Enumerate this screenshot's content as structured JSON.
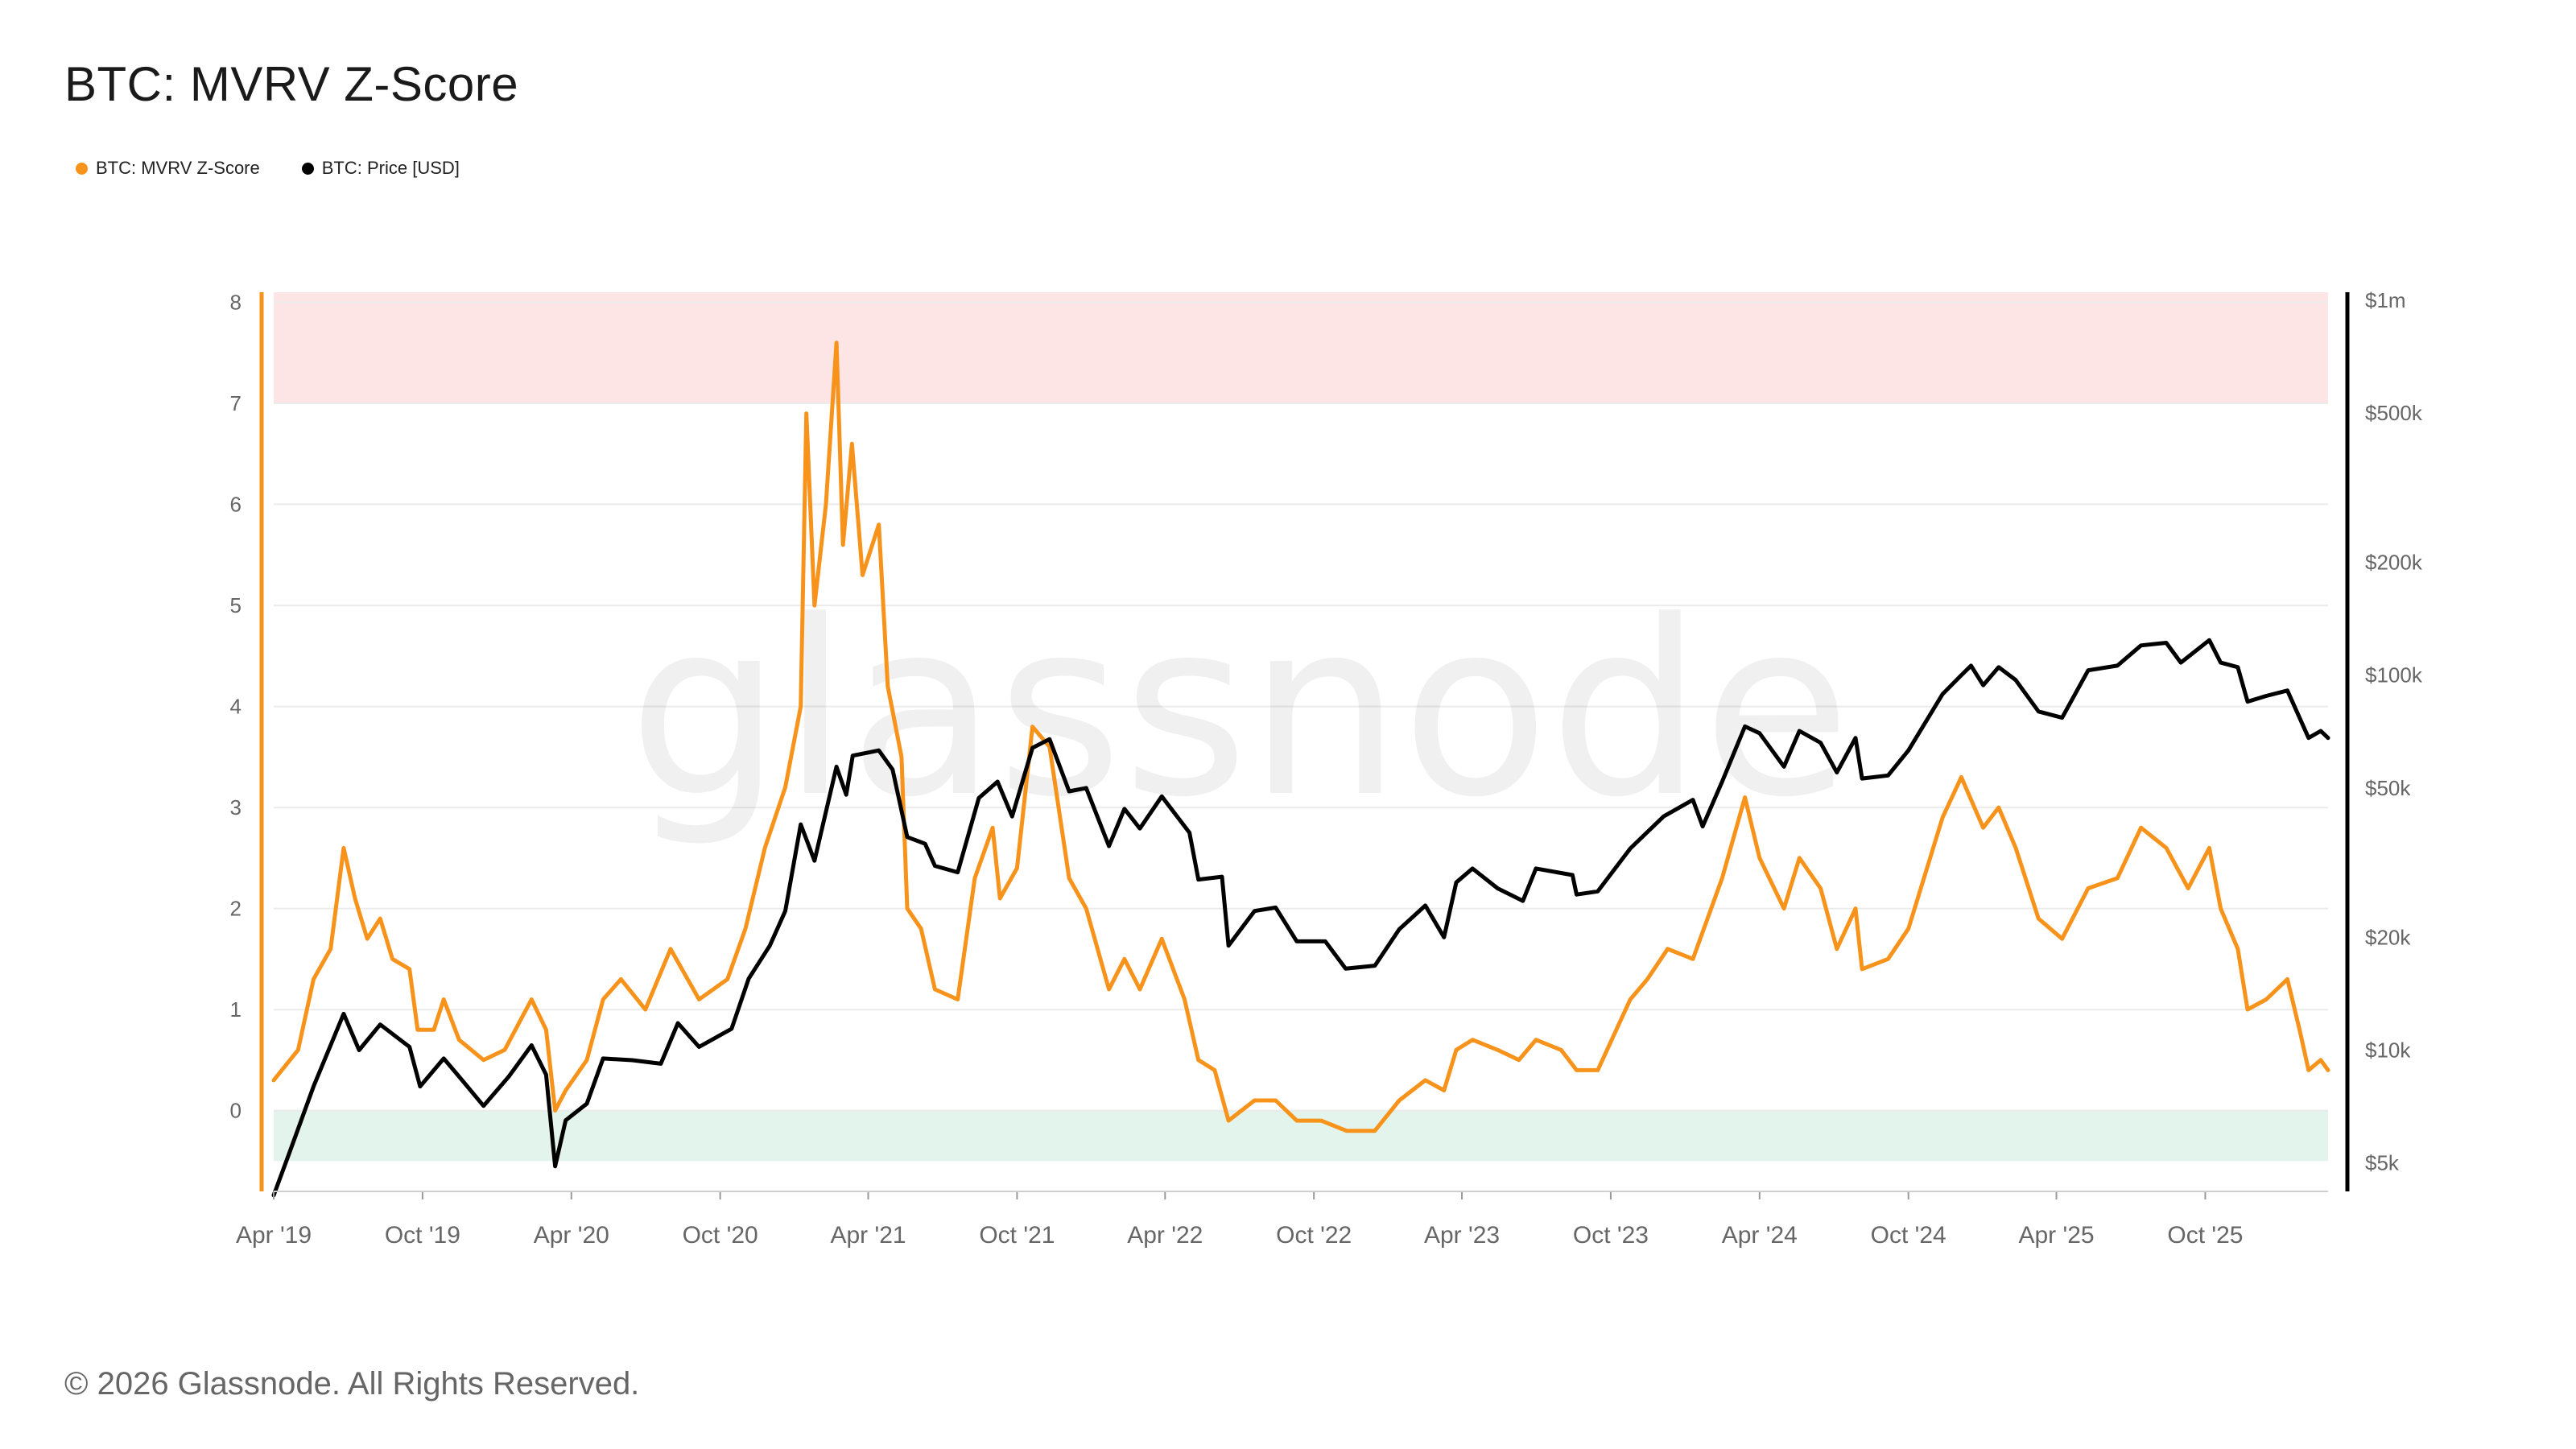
{
  "title": "BTC: MVRV Z-Score",
  "legend": [
    {
      "label": "BTC: MVRV Z-Score",
      "color": "#F7931A"
    },
    {
      "label": "BTC: Price [USD]",
      "color": "#000000"
    }
  ],
  "watermark": "glassnode",
  "footer": "© 2026 Glassnode. All Rights Reserved.",
  "colors": {
    "zscore": "#F7931A",
    "price": "#000000",
    "red_zone": "#FDE5E5",
    "green_zone": "#E3F4EC",
    "grid": "#EBEBEB"
  },
  "chart_data": {
    "type": "line",
    "x_ticks": [
      "Apr '19",
      "Oct '19",
      "Apr '20",
      "Oct '20",
      "Apr '21",
      "Oct '21",
      "Apr '22",
      "Oct '22",
      "Apr '23",
      "Oct '23",
      "Apr '24",
      "Oct '24",
      "Apr '25",
      "Oct '25"
    ],
    "x_range": [
      "2019-04",
      "2026-02"
    ],
    "y_left": {
      "ticks": [
        "8",
        "7",
        "6",
        "5",
        "4",
        "3",
        "2",
        "1",
        "0"
      ],
      "range": [
        -0.8,
        8.1
      ]
    },
    "y_right": {
      "scale": "log",
      "ticks": [
        {
          "label": "$1m",
          "value": 1000000
        },
        {
          "label": "$500k",
          "value": 500000
        },
        {
          "label": "$200k",
          "value": 200000
        },
        {
          "label": "$100k",
          "value": 100000
        },
        {
          "label": "$50k",
          "value": 50000
        },
        {
          "label": "$20k",
          "value": 20000
        },
        {
          "label": "$10k",
          "value": 10000
        },
        {
          "label": "$5k",
          "value": 5000
        }
      ],
      "range": [
        4200,
        1050000
      ]
    },
    "bands": [
      {
        "axis": "left",
        "from": 7,
        "to": 8.1
      },
      {
        "axis": "left",
        "from": -0.5,
        "to": 0
      }
    ],
    "series": [
      {
        "name": "BTC: MVRV Z-Score",
        "axis": "left",
        "points": [
          [
            "2019-04-01",
            0.3
          ],
          [
            "2019-05-01",
            0.6
          ],
          [
            "2019-05-20",
            1.3
          ],
          [
            "2019-06-10",
            1.6
          ],
          [
            "2019-06-26",
            2.6
          ],
          [
            "2019-07-10",
            2.1
          ],
          [
            "2019-07-25",
            1.7
          ],
          [
            "2019-08-10",
            1.9
          ],
          [
            "2019-08-25",
            1.5
          ],
          [
            "2019-09-15",
            1.4
          ],
          [
            "2019-09-25",
            0.8
          ],
          [
            "2019-10-15",
            0.8
          ],
          [
            "2019-10-27",
            1.1
          ],
          [
            "2019-11-15",
            0.7
          ],
          [
            "2019-12-15",
            0.5
          ],
          [
            "2020-01-10",
            0.6
          ],
          [
            "2020-02-12",
            1.1
          ],
          [
            "2020-03-01",
            0.8
          ],
          [
            "2020-03-12",
            0.0
          ],
          [
            "2020-03-25",
            0.2
          ],
          [
            "2020-04-20",
            0.5
          ],
          [
            "2020-05-10",
            1.1
          ],
          [
            "2020-06-01",
            1.3
          ],
          [
            "2020-07-01",
            1.0
          ],
          [
            "2020-08-01",
            1.6
          ],
          [
            "2020-09-05",
            1.1
          ],
          [
            "2020-10-10",
            1.3
          ],
          [
            "2020-11-01",
            1.8
          ],
          [
            "2020-11-25",
            2.6
          ],
          [
            "2020-12-20",
            3.2
          ],
          [
            "2021-01-08",
            4.0
          ],
          [
            "2021-01-15",
            6.9
          ],
          [
            "2021-01-25",
            5.0
          ],
          [
            "2021-02-08",
            6.0
          ],
          [
            "2021-02-21",
            7.6
          ],
          [
            "2021-03-01",
            5.6
          ],
          [
            "2021-03-12",
            6.6
          ],
          [
            "2021-03-25",
            5.3
          ],
          [
            "2021-04-14",
            5.8
          ],
          [
            "2021-04-25",
            4.2
          ],
          [
            "2021-05-12",
            3.5
          ],
          [
            "2021-05-19",
            2.0
          ],
          [
            "2021-06-05",
            1.8
          ],
          [
            "2021-06-22",
            1.2
          ],
          [
            "2021-07-20",
            1.1
          ],
          [
            "2021-08-10",
            2.3
          ],
          [
            "2021-09-01",
            2.8
          ],
          [
            "2021-09-10",
            2.1
          ],
          [
            "2021-10-01",
            2.4
          ],
          [
            "2021-10-20",
            3.8
          ],
          [
            "2021-11-10",
            3.6
          ],
          [
            "2021-12-04",
            2.3
          ],
          [
            "2021-12-25",
            2.0
          ],
          [
            "2022-01-22",
            1.2
          ],
          [
            "2022-02-10",
            1.5
          ],
          [
            "2022-03-01",
            1.2
          ],
          [
            "2022-03-28",
            1.7
          ],
          [
            "2022-04-25",
            1.1
          ],
          [
            "2022-05-12",
            0.5
          ],
          [
            "2022-06-01",
            0.4
          ],
          [
            "2022-06-18",
            -0.1
          ],
          [
            "2022-07-20",
            0.1
          ],
          [
            "2022-08-15",
            0.1
          ],
          [
            "2022-09-10",
            -0.1
          ],
          [
            "2022-10-10",
            -0.1
          ],
          [
            "2022-11-10",
            -0.2
          ],
          [
            "2022-12-15",
            -0.2
          ],
          [
            "2023-01-14",
            0.1
          ],
          [
            "2023-02-15",
            0.3
          ],
          [
            "2023-03-10",
            0.2
          ],
          [
            "2023-03-25",
            0.6
          ],
          [
            "2023-04-14",
            0.7
          ],
          [
            "2023-05-15",
            0.6
          ],
          [
            "2023-06-10",
            0.5
          ],
          [
            "2023-07-01",
            0.7
          ],
          [
            "2023-08-01",
            0.6
          ],
          [
            "2023-08-20",
            0.4
          ],
          [
            "2023-09-15",
            0.4
          ],
          [
            "2023-10-25",
            1.1
          ],
          [
            "2023-11-15",
            1.3
          ],
          [
            "2023-12-10",
            1.6
          ],
          [
            "2024-01-10",
            1.5
          ],
          [
            "2024-02-15",
            2.3
          ],
          [
            "2024-03-14",
            3.1
          ],
          [
            "2024-04-01",
            2.5
          ],
          [
            "2024-05-01",
            2.0
          ],
          [
            "2024-05-20",
            2.5
          ],
          [
            "2024-06-15",
            2.2
          ],
          [
            "2024-07-05",
            1.6
          ],
          [
            "2024-07-28",
            2.0
          ],
          [
            "2024-08-05",
            1.4
          ],
          [
            "2024-09-06",
            1.5
          ],
          [
            "2024-10-01",
            1.8
          ],
          [
            "2024-11-12",
            2.9
          ],
          [
            "2024-12-05",
            3.3
          ],
          [
            "2025-01-01",
            2.8
          ],
          [
            "2025-01-20",
            3.0
          ],
          [
            "2025-02-10",
            2.6
          ],
          [
            "2025-03-10",
            1.9
          ],
          [
            "2025-04-08",
            1.7
          ],
          [
            "2025-05-10",
            2.2
          ],
          [
            "2025-06-15",
            2.3
          ],
          [
            "2025-07-14",
            2.8
          ],
          [
            "2025-08-14",
            2.6
          ],
          [
            "2025-09-10",
            2.2
          ],
          [
            "2025-10-06",
            2.6
          ],
          [
            "2025-10-20",
            2.0
          ],
          [
            "2025-11-10",
            1.6
          ],
          [
            "2025-11-22",
            1.0
          ],
          [
            "2025-12-15",
            1.1
          ],
          [
            "2026-01-10",
            1.3
          ],
          [
            "2026-01-25",
            0.8
          ],
          [
            "2026-02-05",
            0.4
          ],
          [
            "2026-02-20",
            0.5
          ],
          [
            "2026-03-01",
            0.4
          ]
        ]
      },
      {
        "name": "BTC: Price [USD]",
        "axis": "right",
        "points": [
          [
            "2019-04-01",
            4100
          ],
          [
            "2019-04-20",
            5300
          ],
          [
            "2019-05-20",
            8000
          ],
          [
            "2019-06-26",
            12500
          ],
          [
            "2019-07-15",
            10000
          ],
          [
            "2019-08-10",
            11700
          ],
          [
            "2019-09-15",
            10200
          ],
          [
            "2019-09-28",
            8000
          ],
          [
            "2019-10-27",
            9500
          ],
          [
            "2019-11-15",
            8500
          ],
          [
            "2019-12-15",
            7100
          ],
          [
            "2020-01-15",
            8500
          ],
          [
            "2020-02-12",
            10300
          ],
          [
            "2020-03-01",
            8600
          ],
          [
            "2020-03-12",
            4900
          ],
          [
            "2020-03-25",
            6500
          ],
          [
            "2020-04-20",
            7200
          ],
          [
            "2020-05-10",
            9500
          ],
          [
            "2020-06-15",
            9400
          ],
          [
            "2020-07-20",
            9200
          ],
          [
            "2020-08-10",
            11800
          ],
          [
            "2020-09-05",
            10200
          ],
          [
            "2020-10-15",
            11400
          ],
          [
            "2020-11-05",
            15500
          ],
          [
            "2020-12-01",
            19000
          ],
          [
            "2020-12-20",
            23500
          ],
          [
            "2021-01-08",
            40000
          ],
          [
            "2021-01-25",
            32000
          ],
          [
            "2021-02-21",
            57000
          ],
          [
            "2021-03-05",
            48000
          ],
          [
            "2021-03-13",
            61000
          ],
          [
            "2021-04-14",
            63000
          ],
          [
            "2021-05-01",
            56000
          ],
          [
            "2021-05-19",
            37000
          ],
          [
            "2021-06-10",
            35500
          ],
          [
            "2021-06-22",
            31000
          ],
          [
            "2021-07-20",
            29800
          ],
          [
            "2021-08-15",
            47000
          ],
          [
            "2021-09-07",
            52000
          ],
          [
            "2021-09-25",
            42000
          ],
          [
            "2021-10-20",
            64000
          ],
          [
            "2021-11-10",
            67500
          ],
          [
            "2021-12-04",
            49000
          ],
          [
            "2021-12-25",
            50000
          ],
          [
            "2022-01-22",
            35000
          ],
          [
            "2022-02-10",
            44000
          ],
          [
            "2022-03-01",
            39000
          ],
          [
            "2022-03-28",
            47500
          ],
          [
            "2022-05-01",
            38000
          ],
          [
            "2022-05-12",
            28500
          ],
          [
            "2022-06-10",
            29000
          ],
          [
            "2022-06-18",
            19000
          ],
          [
            "2022-07-20",
            23500
          ],
          [
            "2022-08-15",
            24000
          ],
          [
            "2022-09-10",
            19500
          ],
          [
            "2022-10-15",
            19500
          ],
          [
            "2022-11-09",
            16500
          ],
          [
            "2022-12-15",
            16800
          ],
          [
            "2023-01-14",
            21000
          ],
          [
            "2023-02-15",
            24300
          ],
          [
            "2023-03-10",
            20000
          ],
          [
            "2023-03-25",
            28000
          ],
          [
            "2023-04-14",
            30500
          ],
          [
            "2023-05-15",
            27000
          ],
          [
            "2023-06-15",
            25000
          ],
          [
            "2023-07-01",
            30500
          ],
          [
            "2023-08-15",
            29300
          ],
          [
            "2023-08-20",
            26000
          ],
          [
            "2023-09-15",
            26500
          ],
          [
            "2023-10-25",
            34500
          ],
          [
            "2023-12-05",
            42000
          ],
          [
            "2024-01-10",
            46500
          ],
          [
            "2024-01-22",
            39500
          ],
          [
            "2024-02-15",
            52000
          ],
          [
            "2024-03-14",
            73000
          ],
          [
            "2024-04-01",
            70000
          ],
          [
            "2024-05-01",
            57000
          ],
          [
            "2024-05-20",
            71000
          ],
          [
            "2024-06-15",
            66000
          ],
          [
            "2024-07-05",
            55000
          ],
          [
            "2024-07-28",
            68000
          ],
          [
            "2024-08-05",
            53000
          ],
          [
            "2024-09-06",
            54000
          ],
          [
            "2024-10-01",
            63000
          ],
          [
            "2024-11-12",
            89000
          ],
          [
            "2024-12-05",
            100000
          ],
          [
            "2024-12-17",
            106000
          ],
          [
            "2025-01-01",
            94000
          ],
          [
            "2025-01-20",
            105000
          ],
          [
            "2025-02-10",
            97000
          ],
          [
            "2025-03-10",
            80000
          ],
          [
            "2025-04-08",
            77000
          ],
          [
            "2025-05-10",
            103000
          ],
          [
            "2025-06-15",
            106000
          ],
          [
            "2025-07-14",
            120000
          ],
          [
            "2025-08-14",
            122000
          ],
          [
            "2025-09-01",
            108000
          ],
          [
            "2025-10-06",
            124000
          ],
          [
            "2025-10-20",
            108000
          ],
          [
            "2025-11-10",
            105000
          ],
          [
            "2025-11-22",
            85000
          ],
          [
            "2025-12-15",
            88000
          ],
          [
            "2026-01-10",
            91000
          ],
          [
            "2026-02-05",
            68000
          ],
          [
            "2026-02-20",
            71000
          ],
          [
            "2026-03-01",
            68000
          ]
        ]
      }
    ]
  }
}
